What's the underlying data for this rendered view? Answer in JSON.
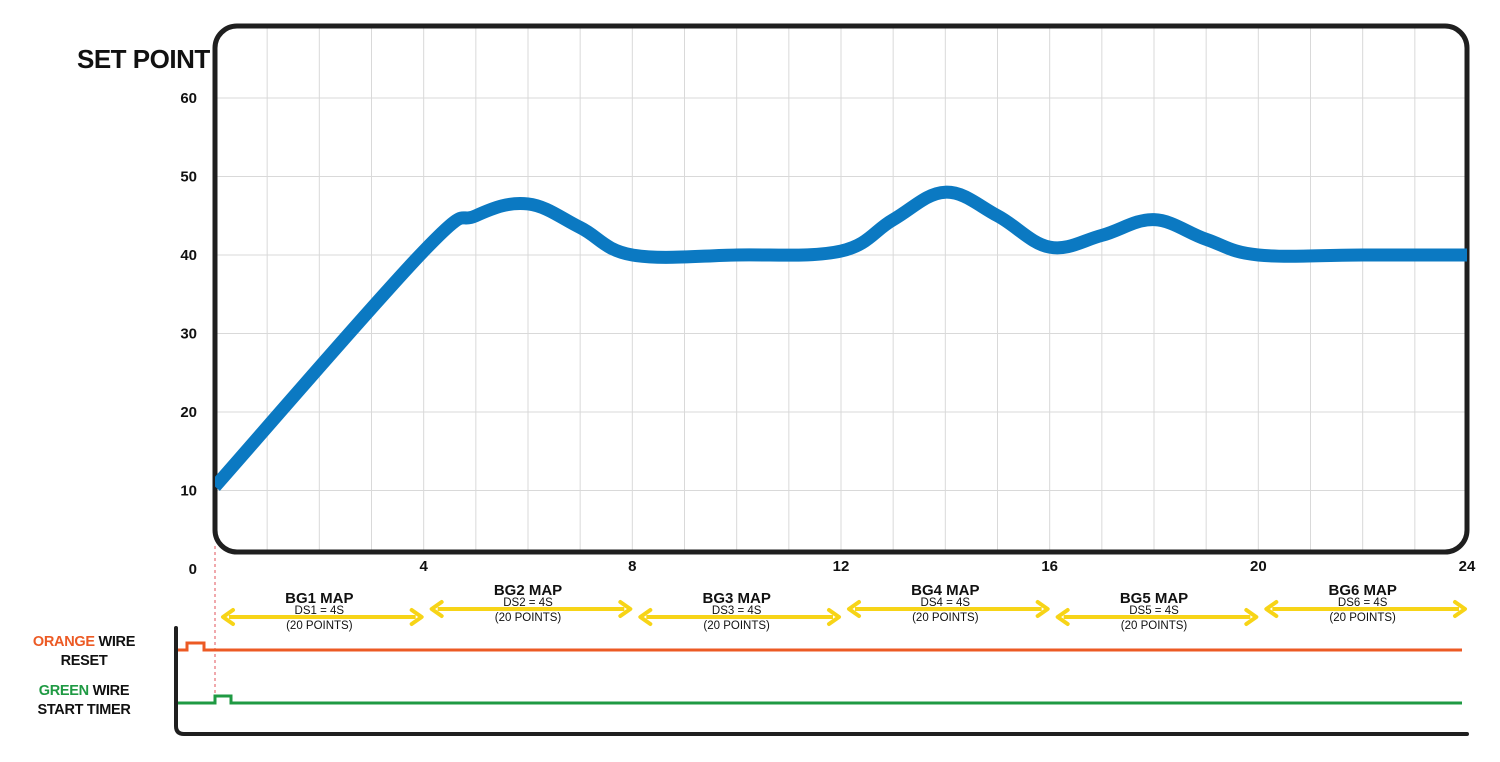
{
  "chart_data": {
    "type": "line",
    "ylabel": "SET POINT",
    "xlabel": "",
    "xlim": [
      0,
      24
    ],
    "ylim": [
      0,
      65
    ],
    "x_ticks": [
      "4",
      "8",
      "12",
      "16",
      "20",
      "24"
    ],
    "y_ticks": [
      "0",
      "10",
      "20",
      "30",
      "40",
      "50",
      "60"
    ],
    "grid": true,
    "series": [
      {
        "color": "#0b79c2",
        "x": [
          0,
          4,
          5,
          6,
          7,
          8,
          10,
          12,
          13,
          14,
          15,
          16,
          17,
          18,
          19,
          20,
          22,
          24
        ],
        "y": [
          10.5,
          40.5,
          45,
          46.5,
          43.5,
          40,
          40,
          40.5,
          44.5,
          48,
          45,
          41,
          42.5,
          44.5,
          42,
          40,
          40,
          40
        ]
      }
    ],
    "segments": [
      {
        "label": "BG1 MAP",
        "ds": "DS1 = 4S",
        "points": "(20 POINTS)",
        "x_start": 0,
        "x_end": 4
      },
      {
        "label": "BG2 MAP",
        "ds": "DS2 = 4S",
        "points": "(20 POINTS)",
        "x_start": 4,
        "x_end": 8
      },
      {
        "label": "BG3 MAP",
        "ds": "DS3 = 4S",
        "points": "(20 POINTS)",
        "x_start": 8,
        "x_end": 12
      },
      {
        "label": "BG4 MAP",
        "ds": "DS4 = 4S",
        "points": "(20 POINTS)",
        "x_start": 12,
        "x_end": 16
      },
      {
        "label": "BG5 MAP",
        "ds": "DS5 = 4S",
        "points": "(20 POINTS)",
        "x_start": 16,
        "x_end": 20
      },
      {
        "label": "BG6 MAP",
        "ds": "DS6 = 4S",
        "points": "(20 POINTS)",
        "x_start": 20,
        "x_end": 24
      }
    ],
    "wires": [
      {
        "color_word": "ORANGE",
        "word": "WIRE",
        "function": "RESET",
        "color": "#ec5a24"
      },
      {
        "color_word": "GREEN",
        "word": "WIRE",
        "function": "START TIMER",
        "color": "#1f9a43"
      }
    ],
    "colors": {
      "arrow": "#f7d417",
      "frame": "#1f1f1f",
      "grid": "#d9d9d9",
      "marker": "#e0525a"
    }
  }
}
